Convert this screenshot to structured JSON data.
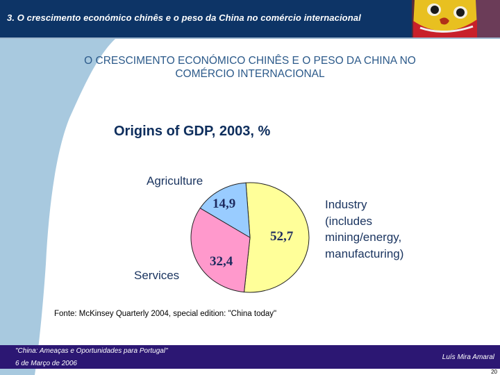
{
  "header": {
    "title": "3. O crescimento económico chinês e o peso da China no comércio internacional",
    "photo": "chinese-lion-mask-photo"
  },
  "slide": {
    "title_line1": "O CRESCIMENTO ECONÓMICO CHINÊS E O PESO DA CHINA NO",
    "title_line2": "COMÉRCIO INTERNACIONAL"
  },
  "colors": {
    "header_bg": "#0d3466",
    "accent_lightblue": "#a8c9df",
    "footer_bg": "#2c1773",
    "industry": "#ffff99",
    "services": "#ff99cc",
    "agriculture": "#99ccff"
  },
  "chart_data": {
    "type": "pie",
    "title": "Origins of GDP, 2003, %",
    "categories": [
      "Industry (includes mining/energy, manufacturing)",
      "Services",
      "Agriculture"
    ],
    "values": [
      52.7,
      32.4,
      14.9
    ],
    "value_labels": [
      "52,7",
      "32,4",
      "14,9"
    ],
    "colors": [
      "#ffff99",
      "#ff99cc",
      "#99ccff"
    ],
    "labels": {
      "agriculture": "Agriculture",
      "services": "Services",
      "industry": [
        "Industry",
        "(includes",
        "mining/energy,",
        "manufacturing)"
      ]
    },
    "legend": "none (direct labels)",
    "source": "Fonte: McKinsey Quarterly 2004, special edition: \"China today\""
  },
  "footer": {
    "event": "\"China: Ameaças e Oportunidades para Portugal\"",
    "date": "6 de Março de 2006",
    "author": "Luís Mira Amaral",
    "page": "20"
  }
}
